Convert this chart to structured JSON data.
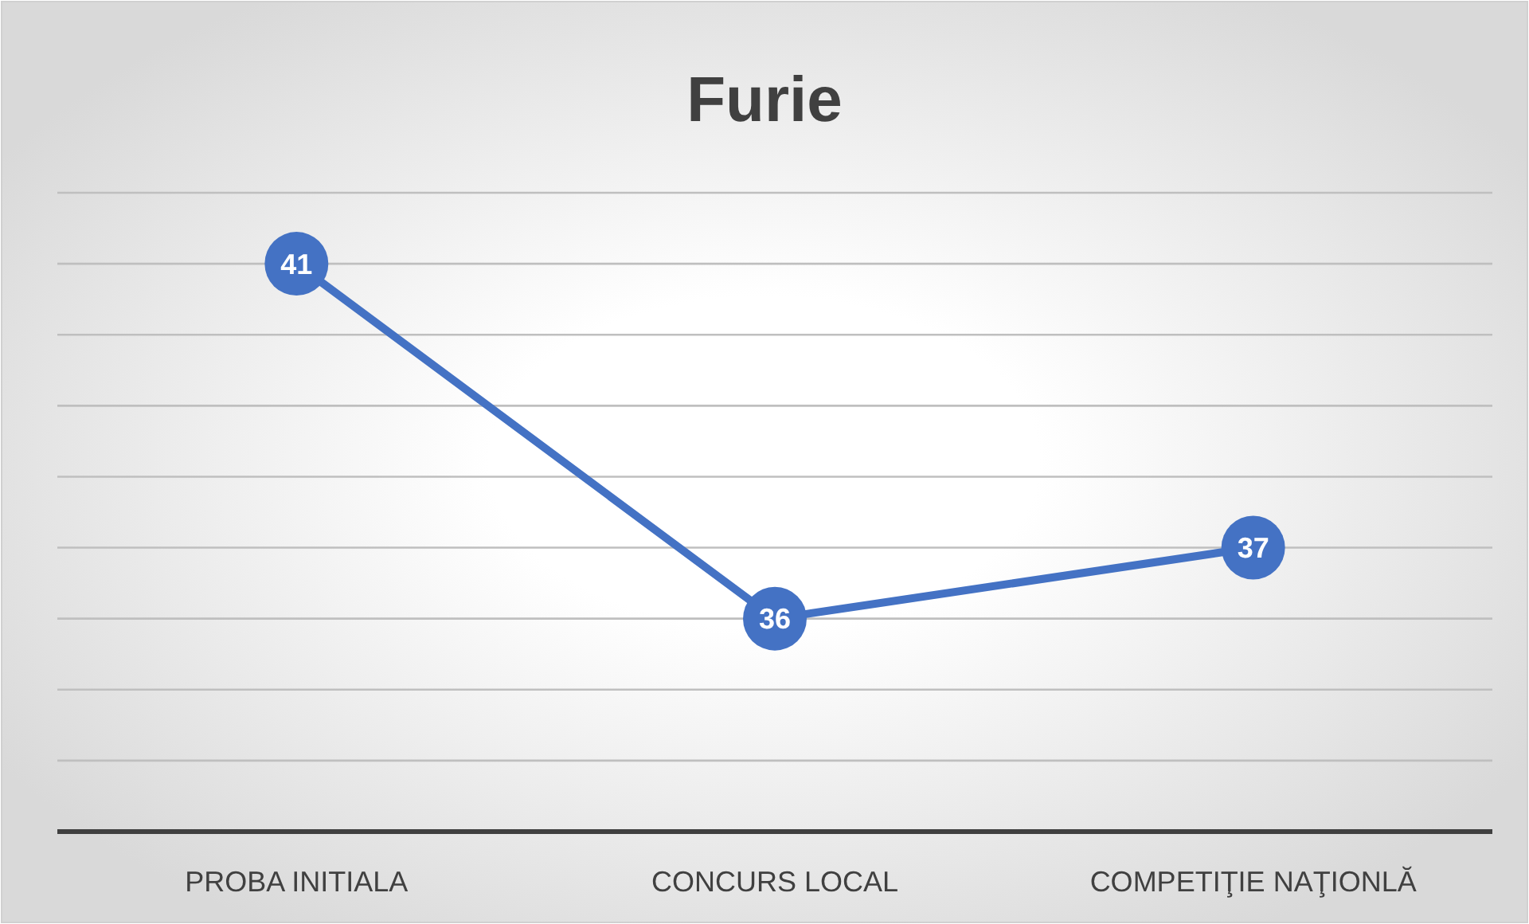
{
  "chart_data": {
    "type": "line",
    "title": "Furie",
    "categories": [
      "PROBA INITIALA",
      "CONCURS LOCAL",
      "COMPETIŢIE NAŢIONLĂ"
    ],
    "series": [
      {
        "color": "#4472c4",
        "values": [
          41,
          36,
          37
        ]
      }
    ],
    "ylim": [
      33,
      42
    ],
    "yticks": [
      {
        "value": 34,
        "label": null
      },
      {
        "value": 35,
        "label": null
      },
      {
        "value": 36,
        "label": null
      },
      {
        "value": 37,
        "label": null
      },
      {
        "value": 38,
        "label": null
      },
      {
        "value": 39,
        "label": null
      },
      {
        "value": 40,
        "label": null
      },
      {
        "value": 41,
        "label": null
      },
      {
        "value": 42,
        "label": null
      }
    ],
    "tick_labels": "x",
    "grid": "y",
    "data_labels": true,
    "marker": "circle",
    "line_style": "solid"
  }
}
